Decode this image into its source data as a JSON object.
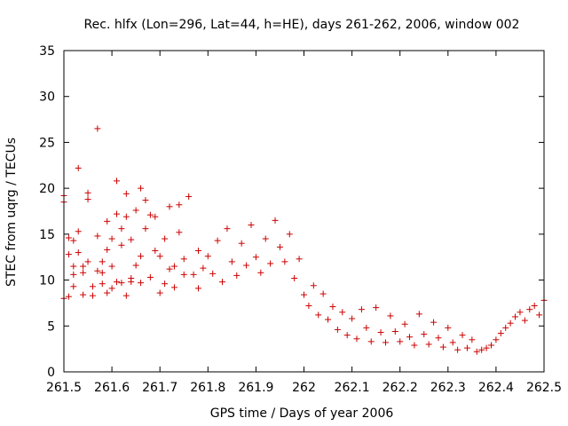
{
  "chart_data": {
    "type": "scatter",
    "title": "Rec. hlfx (Lon=296, Lat=44, h=HE), days 261-262, 2006, window 002",
    "xlabel": "GPS time / Days of year 2006",
    "ylabel": "STEC from uqrg / TECUs",
    "xlim": [
      261.5,
      262.5
    ],
    "ylim": [
      0,
      35
    ],
    "x_ticks": [
      "261.5",
      "261.6",
      "261.7",
      "261.8",
      "261.9",
      "262",
      "262.1",
      "262.2",
      "262.3",
      "262.4",
      "262.5"
    ],
    "y_ticks": [
      "0",
      "5",
      "10",
      "15",
      "20",
      "25",
      "30",
      "35"
    ],
    "marker": "+",
    "color": "#cc0000",
    "series": [
      {
        "name": "STEC",
        "points": [
          [
            261.5,
            18.5
          ],
          [
            261.5,
            19.2
          ],
          [
            261.5,
            8.0
          ],
          [
            261.51,
            8.2
          ],
          [
            261.51,
            14.6
          ],
          [
            261.51,
            12.8
          ],
          [
            261.52,
            14.3
          ],
          [
            261.52,
            11.5
          ],
          [
            261.52,
            9.3
          ],
          [
            261.52,
            10.6
          ],
          [
            261.53,
            22.2
          ],
          [
            261.53,
            15.3
          ],
          [
            261.53,
            13.0
          ],
          [
            261.54,
            11.5
          ],
          [
            261.54,
            10.8
          ],
          [
            261.54,
            8.4
          ],
          [
            261.55,
            19.5
          ],
          [
            261.55,
            18.8
          ],
          [
            261.55,
            12.0
          ],
          [
            261.56,
            9.3
          ],
          [
            261.56,
            8.3
          ],
          [
            261.57,
            14.8
          ],
          [
            261.57,
            26.5
          ],
          [
            261.57,
            11.0
          ],
          [
            261.58,
            12.0
          ],
          [
            261.58,
            10.8
          ],
          [
            261.58,
            9.6
          ],
          [
            261.59,
            13.3
          ],
          [
            261.59,
            16.4
          ],
          [
            261.59,
            8.6
          ],
          [
            261.6,
            11.5
          ],
          [
            261.6,
            14.5
          ],
          [
            261.6,
            9.1
          ],
          [
            261.61,
            9.8
          ],
          [
            261.61,
            17.2
          ],
          [
            261.61,
            20.8
          ],
          [
            261.62,
            9.7
          ],
          [
            261.62,
            13.8
          ],
          [
            261.62,
            15.6
          ],
          [
            261.63,
            16.9
          ],
          [
            261.63,
            19.4
          ],
          [
            261.63,
            8.3
          ],
          [
            261.64,
            9.8
          ],
          [
            261.64,
            10.2
          ],
          [
            261.64,
            14.4
          ],
          [
            261.65,
            17.6
          ],
          [
            261.65,
            11.6
          ],
          [
            261.66,
            20.0
          ],
          [
            261.66,
            12.6
          ],
          [
            261.66,
            9.7
          ],
          [
            261.67,
            18.7
          ],
          [
            261.67,
            15.6
          ],
          [
            261.68,
            17.1
          ],
          [
            261.68,
            10.3
          ],
          [
            261.69,
            16.9
          ],
          [
            261.69,
            13.2
          ],
          [
            261.7,
            12.6
          ],
          [
            261.7,
            8.6
          ],
          [
            261.71,
            9.6
          ],
          [
            261.71,
            14.5
          ],
          [
            261.72,
            18.0
          ],
          [
            261.72,
            11.2
          ],
          [
            261.73,
            11.5
          ],
          [
            261.73,
            9.2
          ],
          [
            261.74,
            15.2
          ],
          [
            261.74,
            18.2
          ],
          [
            261.75,
            10.6
          ],
          [
            261.75,
            12.3
          ],
          [
            261.76,
            19.1
          ],
          [
            261.77,
            10.6
          ],
          [
            261.78,
            13.2
          ],
          [
            261.78,
            9.1
          ],
          [
            261.79,
            11.3
          ],
          [
            261.8,
            12.6
          ],
          [
            261.81,
            10.7
          ],
          [
            261.82,
            14.3
          ],
          [
            261.83,
            9.8
          ],
          [
            261.84,
            15.6
          ],
          [
            261.85,
            12.0
          ],
          [
            261.86,
            10.5
          ],
          [
            261.87,
            14.0
          ],
          [
            261.88,
            11.6
          ],
          [
            261.89,
            16.0
          ],
          [
            261.9,
            12.5
          ],
          [
            261.91,
            10.8
          ],
          [
            261.92,
            14.5
          ],
          [
            261.93,
            11.8
          ],
          [
            261.94,
            16.5
          ],
          [
            261.95,
            13.6
          ],
          [
            261.96,
            12.0
          ],
          [
            261.97,
            15.0
          ],
          [
            261.98,
            10.2
          ],
          [
            261.99,
            12.3
          ],
          [
            262.0,
            8.4
          ],
          [
            262.01,
            7.2
          ],
          [
            262.02,
            9.4
          ],
          [
            262.03,
            6.2
          ],
          [
            262.04,
            8.5
          ],
          [
            262.05,
            5.7
          ],
          [
            262.06,
            7.1
          ],
          [
            262.07,
            4.6
          ],
          [
            262.08,
            6.5
          ],
          [
            262.09,
            4.0
          ],
          [
            262.1,
            5.8
          ],
          [
            262.11,
            3.6
          ],
          [
            262.12,
            6.8
          ],
          [
            262.13,
            4.8
          ],
          [
            262.14,
            3.3
          ],
          [
            262.15,
            7.0
          ],
          [
            262.16,
            4.3
          ],
          [
            262.17,
            3.2
          ],
          [
            262.18,
            6.1
          ],
          [
            262.19,
            4.4
          ],
          [
            262.2,
            3.3
          ],
          [
            262.21,
            5.2
          ],
          [
            262.22,
            3.8
          ],
          [
            262.23,
            2.9
          ],
          [
            262.24,
            6.3
          ],
          [
            262.25,
            4.1
          ],
          [
            262.26,
            3.0
          ],
          [
            262.27,
            5.4
          ],
          [
            262.28,
            3.7
          ],
          [
            262.29,
            2.7
          ],
          [
            262.3,
            4.8
          ],
          [
            262.31,
            3.2
          ],
          [
            262.32,
            2.4
          ],
          [
            262.33,
            4.0
          ],
          [
            262.34,
            2.6
          ],
          [
            262.35,
            3.5
          ],
          [
            262.36,
            2.2
          ],
          [
            262.37,
            2.4
          ],
          [
            262.38,
            2.6
          ],
          [
            262.39,
            2.9
          ],
          [
            262.4,
            3.5
          ],
          [
            262.41,
            4.2
          ],
          [
            262.42,
            4.8
          ],
          [
            262.43,
            5.3
          ],
          [
            262.44,
            6.0
          ],
          [
            262.45,
            6.5
          ],
          [
            262.46,
            5.6
          ],
          [
            262.47,
            6.8
          ],
          [
            262.48,
            7.2
          ],
          [
            262.49,
            6.2
          ],
          [
            262.5,
            7.8
          ]
        ]
      }
    ]
  }
}
